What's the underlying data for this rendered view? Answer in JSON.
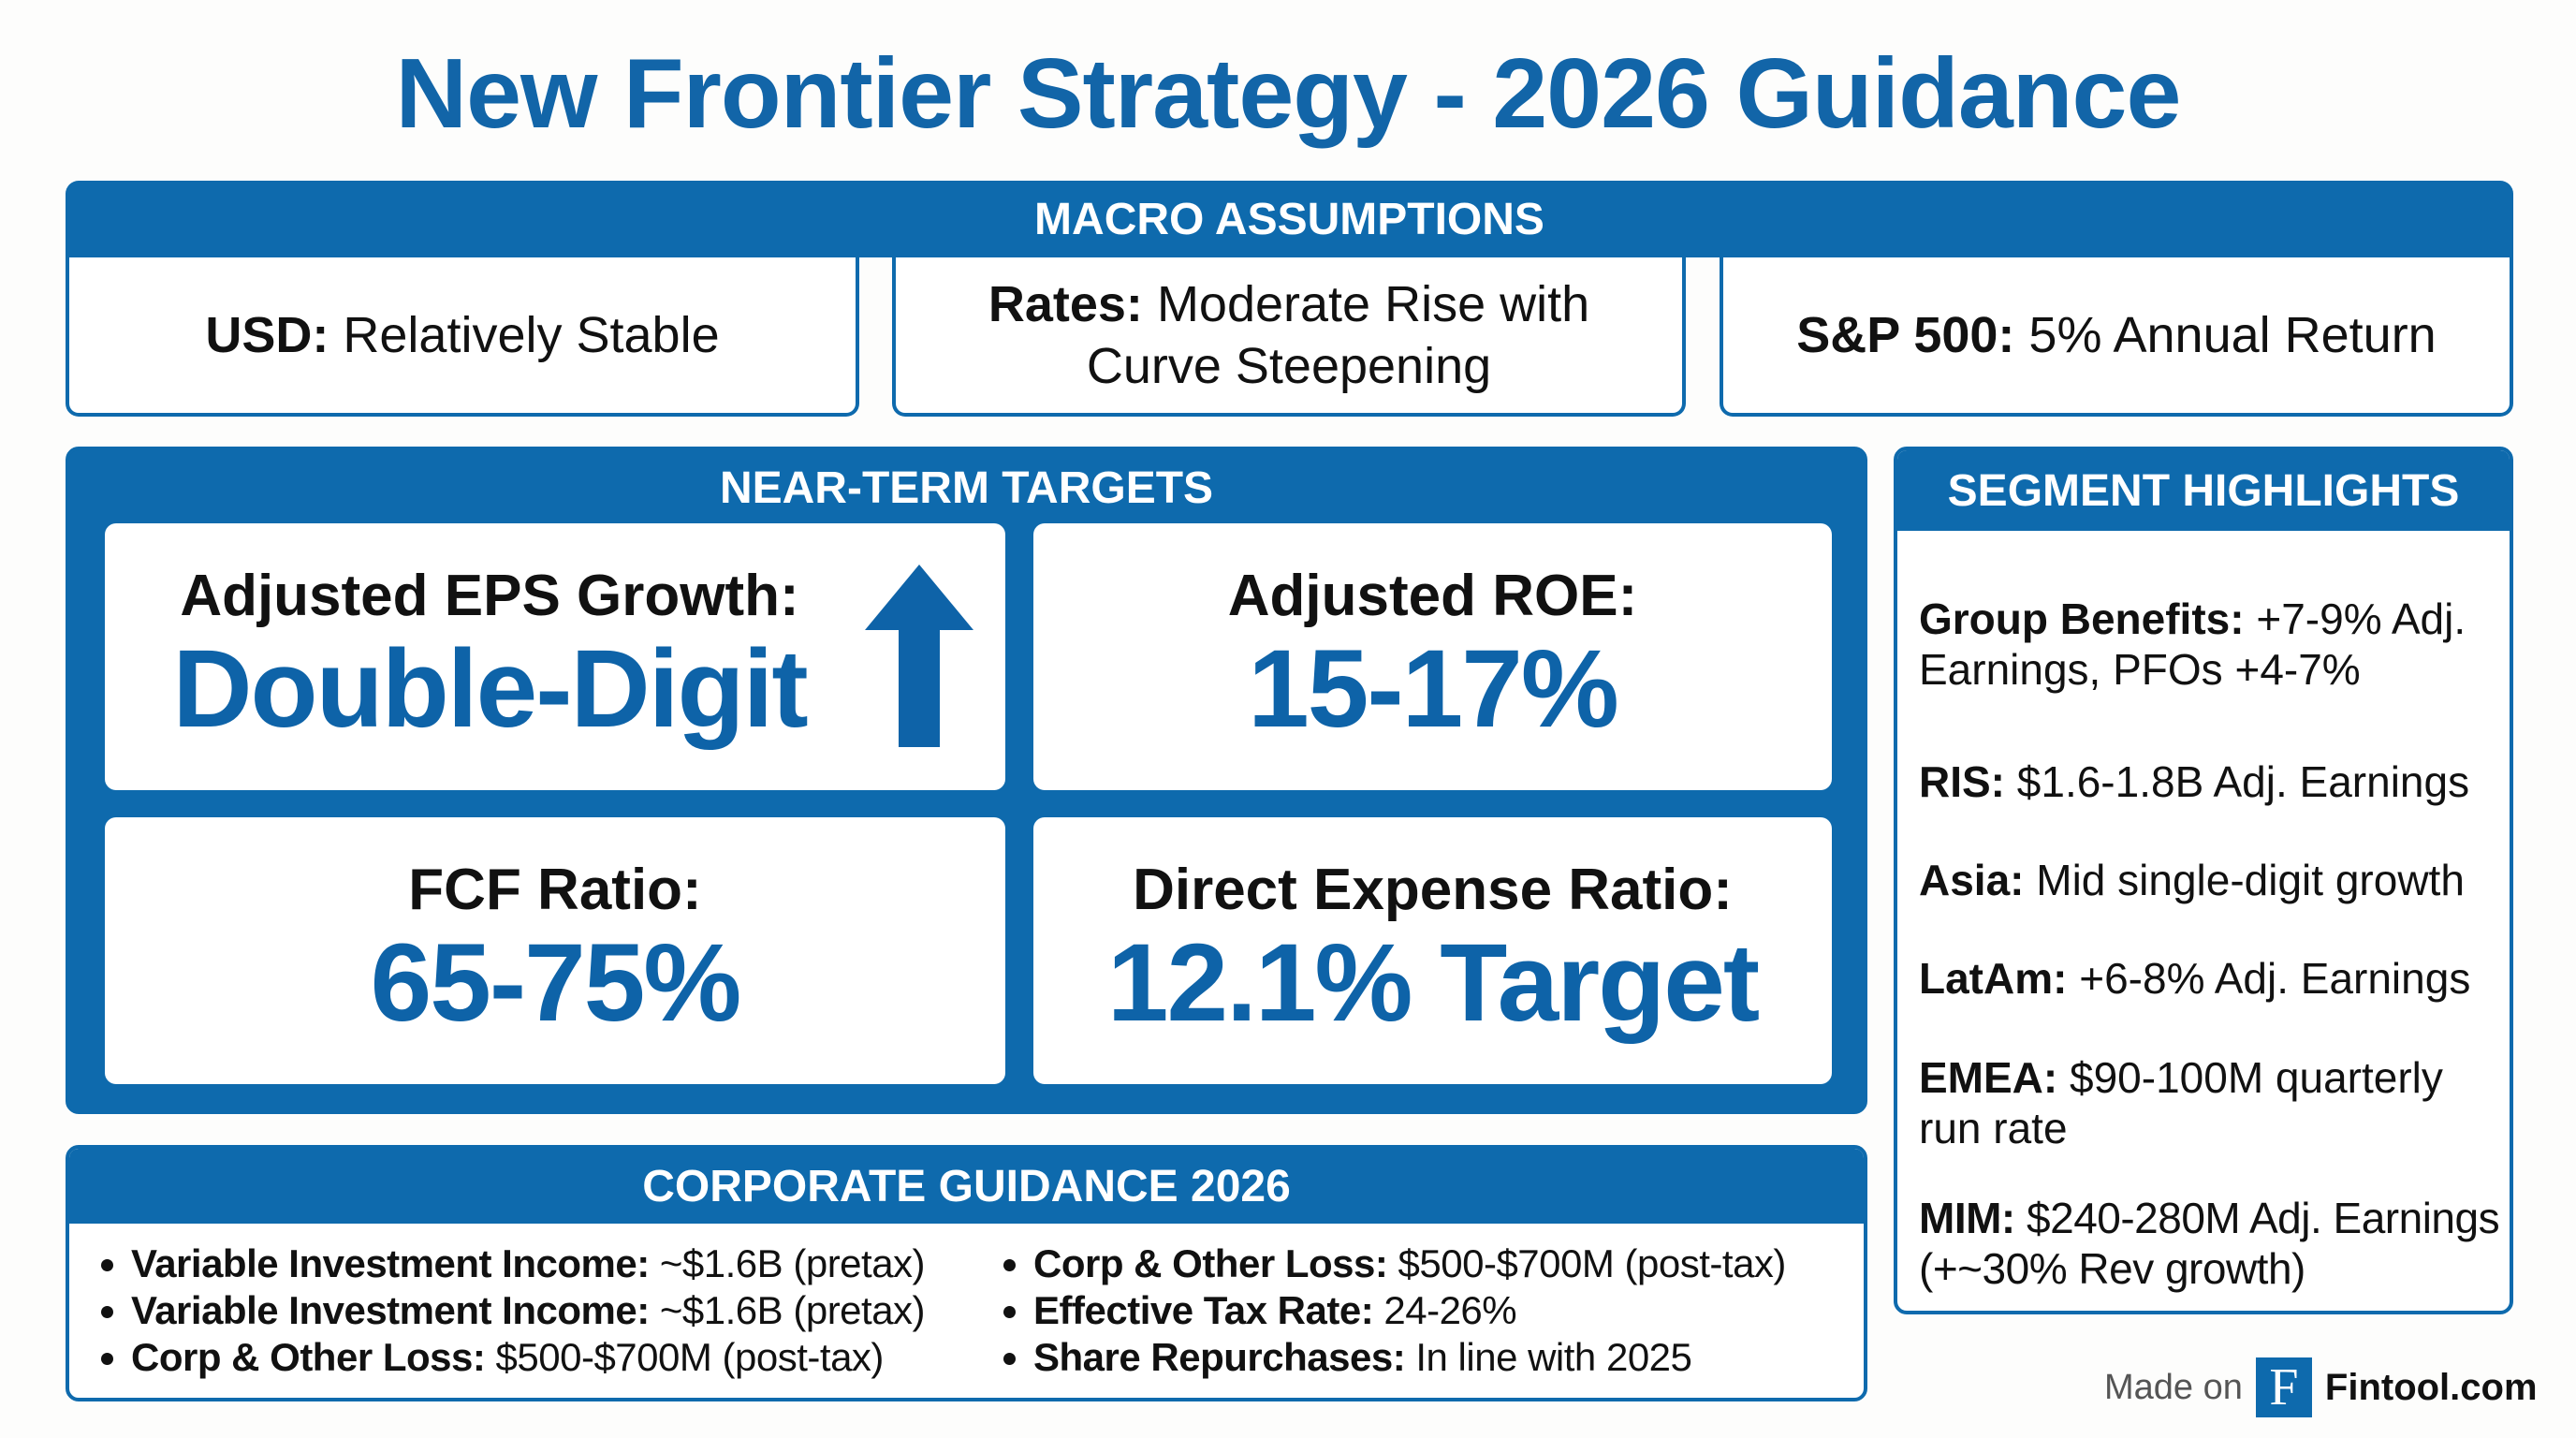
{
  "title": "New Frontier Strategy - 2026 Guidance",
  "macro": {
    "header": "MACRO ASSUMPTIONS",
    "items": [
      {
        "label": "USD:",
        "text": "Relatively Stable"
      },
      {
        "label": "Rates:",
        "text": "Moderate Rise with Curve Steepening"
      },
      {
        "label": "S&P 500:",
        "text": "5% Annual Return"
      }
    ]
  },
  "targets": {
    "header": "NEAR-TERM TARGETS",
    "cards": [
      {
        "label": "Adjusted EPS Growth:",
        "value": "Double-Digit",
        "icon": "up-arrow-icon"
      },
      {
        "label": "Adjusted ROE:",
        "value": "15-17%"
      },
      {
        "label": "FCF Ratio:",
        "value": "65-75%"
      },
      {
        "label": "Direct Expense Ratio:",
        "value": "12.1% Target"
      }
    ]
  },
  "segments": {
    "header": "SEGMENT HIGHLIGHTS",
    "items": [
      {
        "label": "Group Benefits:",
        "text": "+7-9% Adj. Earnings, PFOs +4-7%"
      },
      {
        "label": "RIS:",
        "text": "$1.6-1.8B Adj. Earnings"
      },
      {
        "label": "Asia:",
        "text": "Mid single-digit growth"
      },
      {
        "label": "LatAm:",
        "text": "+6-8% Adj. Earnings"
      },
      {
        "label": "EMEA:",
        "text": "$90-100M quarterly run rate"
      },
      {
        "label": "MIM:",
        "text": "$240-280M Adj. Earnings (+~30% Rev growth)"
      }
    ]
  },
  "corporate": {
    "header": "CORPORATE GUIDANCE 2026",
    "left": [
      {
        "label": "Variable Investment Income:",
        "text": "~$1.6B (pretax)"
      },
      {
        "label": "Variable Investment Income:",
        "text": "~$1.6B (pretax)"
      },
      {
        "label": "Corp & Other Loss:",
        "text": "$500-$700M (post-tax)"
      }
    ],
    "right": [
      {
        "label": "Corp & Other Loss:",
        "text": "$500-$700M (post-tax)"
      },
      {
        "label": "Effective Tax Rate:",
        "text": "24-26%"
      },
      {
        "label": "Share Repurchases:",
        "text": "In line with 2025"
      }
    ]
  },
  "footer": {
    "made_on": "Made on",
    "logo_letter": "F",
    "brand": "Fintool.com"
  },
  "colors": {
    "primary": "#0e6aad",
    "title": "#1265a8"
  }
}
